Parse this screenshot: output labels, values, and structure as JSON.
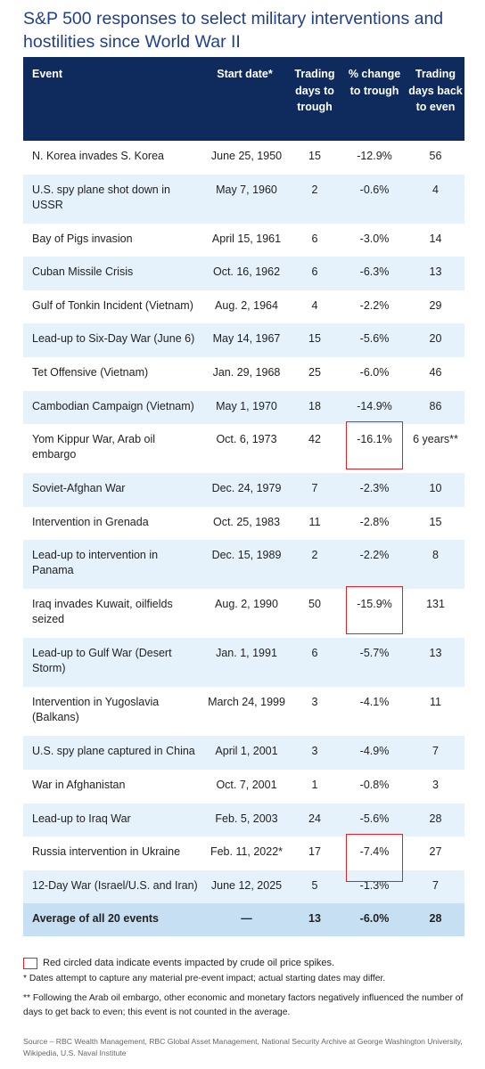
{
  "title": "S&P 500 responses to select military interventions and hostilities since World War II",
  "chart_data": {
    "type": "table",
    "columns": [
      "Event",
      "Start date*",
      "Trading days to trough",
      "% change to trough",
      "Trading days back to even"
    ],
    "rows": [
      {
        "event": "N. Korea invades S. Korea",
        "start": "June 25, 1950",
        "days": "15",
        "pct": "-12.9%",
        "back": "56",
        "circled": false
      },
      {
        "event": "U.S. spy plane shot down in USSR",
        "start": "May 7, 1960",
        "days": "2",
        "pct": "-0.6%",
        "back": "4",
        "circled": false
      },
      {
        "event": "Bay of Pigs invasion",
        "start": "April 15, 1961",
        "days": "6",
        "pct": "-3.0%",
        "back": "14",
        "circled": false
      },
      {
        "event": "Cuban Missile Crisis",
        "start": "Oct. 16, 1962",
        "days": "6",
        "pct": "-6.3%",
        "back": "13",
        "circled": false
      },
      {
        "event": "Gulf of Tonkin Incident (Vietnam)",
        "start": "Aug. 2, 1964",
        "days": "4",
        "pct": "-2.2%",
        "back": "29",
        "circled": false
      },
      {
        "event": "Lead-up to Six-Day War (June 6)",
        "start": "May 14, 1967",
        "days": "15",
        "pct": "-5.6%",
        "back": "20",
        "circled": false
      },
      {
        "event": "Tet Offensive (Vietnam)",
        "start": "Jan. 29, 1968",
        "days": "25",
        "pct": "-6.0%",
        "back": "46",
        "circled": false
      },
      {
        "event": "Cambodian Campaign (Vietnam)",
        "start": "May 1, 1970",
        "days": "18",
        "pct": "-14.9%",
        "back": "86",
        "circled": false
      },
      {
        "event": "Yom Kippur War, Arab oil embargo",
        "start": "Oct. 6, 1973",
        "days": "42",
        "pct": "-16.1%",
        "back": "6 years**",
        "circled": true
      },
      {
        "event": "Soviet-Afghan War",
        "start": "Dec. 24, 1979",
        "days": "7",
        "pct": "-2.3%",
        "back": "10",
        "circled": false
      },
      {
        "event": "Intervention in Grenada",
        "start": "Oct. 25, 1983",
        "days": "11",
        "pct": "-2.8%",
        "back": "15",
        "circled": false
      },
      {
        "event": "Lead-up to intervention in Panama",
        "start": "Dec. 15, 1989",
        "days": "2",
        "pct": "-2.2%",
        "back": "8",
        "circled": false
      },
      {
        "event": "Iraq invades Kuwait, oilfields seized",
        "start": "Aug. 2, 1990",
        "days": "50",
        "pct": "-15.9%",
        "back": "131",
        "circled": true
      },
      {
        "event": "Lead-up to Gulf War (Desert Storm)",
        "start": "Jan. 1, 1991",
        "days": "6",
        "pct": "-5.7%",
        "back": "13",
        "circled": false
      },
      {
        "event": "Intervention in Yugoslavia (Balkans)",
        "start": "March 24, 1999",
        "days": "3",
        "pct": "-4.1%",
        "back": "11",
        "circled": false
      },
      {
        "event": "U.S. spy plane captured in China",
        "start": "April 1, 2001",
        "days": "3",
        "pct": "-4.9%",
        "back": "7",
        "circled": false
      },
      {
        "event": "War in Afghanistan",
        "start": "Oct. 7, 2001",
        "days": "1",
        "pct": "-0.8%",
        "back": "3",
        "circled": false
      },
      {
        "event": "Lead-up to Iraq War",
        "start": "Feb. 5, 2003",
        "days": "24",
        "pct": "-5.6%",
        "back": "28",
        "circled": false
      },
      {
        "event": "Russia intervention in Ukraine",
        "start": "Feb. 11, 2022*",
        "days": "17",
        "pct": "-7.4%",
        "back": "27",
        "circled": true
      },
      {
        "event": "12-Day War (Israel/U.S. and Iran)",
        "start": "June 12, 2025",
        "days": "5",
        "pct": "-1.3%",
        "back": "7",
        "circled": false
      }
    ],
    "average": {
      "event": "Average of all 20 events",
      "start": "—",
      "days": "13",
      "pct": "-6.0%",
      "back": "28"
    }
  },
  "legend": {
    "circled": "Red circled data indicate events impacted by crude oil price spikes."
  },
  "notes": {
    "dates": "* Dates attempt to capture any material pre-event impact; actual starting dates may differ.",
    "embargo": "** Following the Arab oil embargo, other economic and monetary factors negatively influenced the number of days to get back to even; this event is not counted in the average."
  },
  "source": "Source – RBC Wealth Management, RBC Global Asset Management, National Security Archive at George Washington University, Wikipedia, U.S. Naval Institute",
  "colors": {
    "header_bg": "#0f2b5e",
    "row_alt": "#e6f2fb",
    "avg_bg": "#c7dff3",
    "title": "#1f3f8f",
    "circle": "#d9242a"
  }
}
